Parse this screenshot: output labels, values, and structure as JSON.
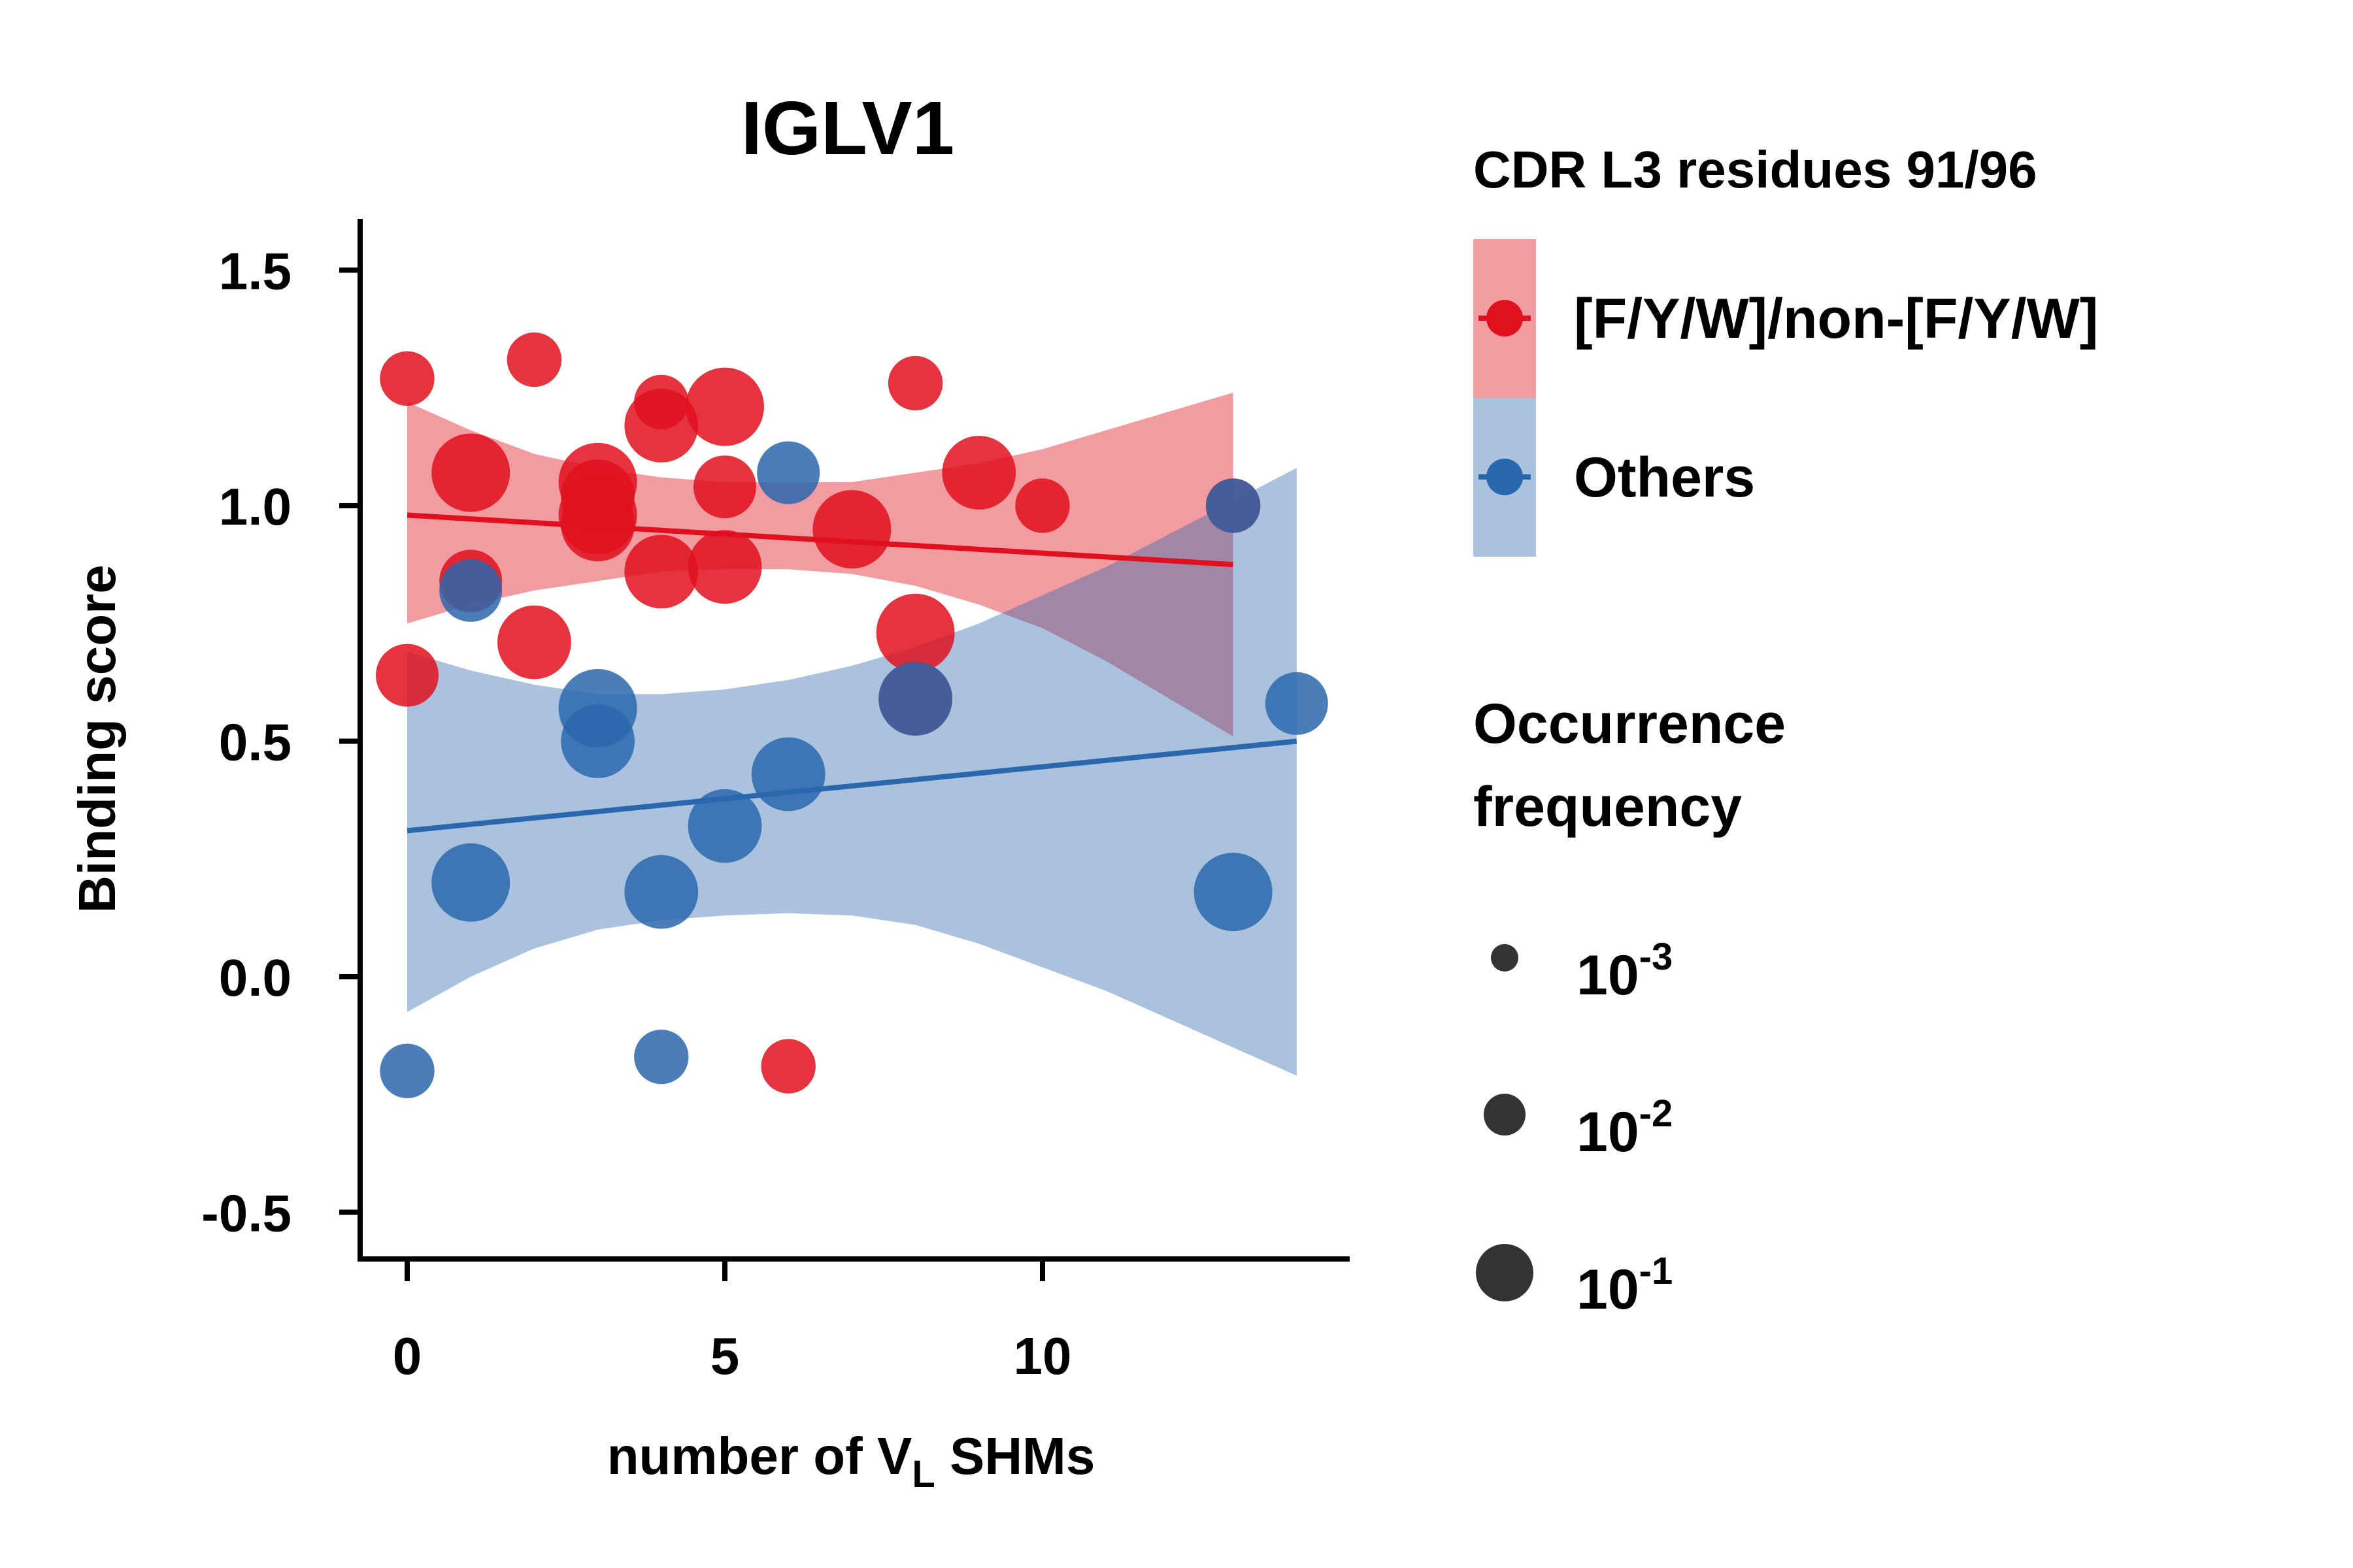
{
  "chart_data": {
    "type": "scatter",
    "title": "IGLV1",
    "xlabel": "number of V",
    "xlabel_sub": "L",
    "xlabel_tail": " SHMs",
    "ylabel": "Binding score",
    "xlim": [
      -0.7,
      14.8
    ],
    "ylim": [
      -0.6,
      1.6
    ],
    "xticks": [
      0,
      5,
      10
    ],
    "yticks": [
      1.5,
      1.0,
      0.5,
      0.0,
      -0.5
    ],
    "ytick_labels": [
      "1.5",
      "1.0",
      "0.5",
      "0.0",
      "-0.5"
    ],
    "xtick_labels": [
      "0",
      "5",
      "10"
    ],
    "grid": false,
    "series": [
      {
        "name": "[F/Y/W]/non-[F/Y/W]",
        "color": "#e0101f",
        "fit": {
          "x": [
            0,
            13
          ],
          "y": [
            0.98,
            0.875
          ]
        },
        "band": {
          "x": [
            0,
            1,
            2,
            3,
            4,
            5,
            6,
            7,
            8,
            9,
            10,
            11,
            12,
            13
          ],
          "upper": [
            1.22,
            1.16,
            1.11,
            1.08,
            1.06,
            1.05,
            1.05,
            1.05,
            1.07,
            1.09,
            1.12,
            1.16,
            1.2,
            1.24
          ],
          "lower": [
            0.75,
            0.79,
            0.82,
            0.84,
            0.86,
            0.865,
            0.865,
            0.855,
            0.83,
            0.79,
            0.74,
            0.67,
            0.59,
            0.51
          ]
        },
        "points": [
          {
            "x": 0,
            "y": 1.27,
            "freq": 0.003
          },
          {
            "x": 0,
            "y": 0.64,
            "freq": 0.01
          },
          {
            "x": 1,
            "y": 1.07,
            "freq": 0.1
          },
          {
            "x": 1,
            "y": 0.84,
            "freq": 0.01
          },
          {
            "x": 2,
            "y": 1.31,
            "freq": 0.003
          },
          {
            "x": 2,
            "y": 0.71,
            "freq": 0.05
          },
          {
            "x": 3,
            "y": 1.05,
            "freq": 0.1
          },
          {
            "x": 3,
            "y": 1.02,
            "freq": 0.05
          },
          {
            "x": 3,
            "y": 0.98,
            "freq": 0.1
          },
          {
            "x": 3,
            "y": 0.96,
            "freq": 0.05
          },
          {
            "x": 4,
            "y": 1.22,
            "freq": 0.003
          },
          {
            "x": 4,
            "y": 1.17,
            "freq": 0.05
          },
          {
            "x": 4,
            "y": 0.86,
            "freq": 0.05
          },
          {
            "x": 5,
            "y": 1.21,
            "freq": 0.1
          },
          {
            "x": 5,
            "y": 1.04,
            "freq": 0.01
          },
          {
            "x": 5,
            "y": 0.87,
            "freq": 0.05
          },
          {
            "x": 6,
            "y": -0.19,
            "freq": 0.003
          },
          {
            "x": 7,
            "y": 0.95,
            "freq": 0.1
          },
          {
            "x": 8,
            "y": 1.26,
            "freq": 0.003
          },
          {
            "x": 8,
            "y": 0.73,
            "freq": 0.1
          },
          {
            "x": 8,
            "y": 0.59,
            "freq": 0.05
          },
          {
            "x": 9,
            "y": 1.07,
            "freq": 0.05
          },
          {
            "x": 10,
            "y": 1.0,
            "freq": 0.003
          },
          {
            "x": 13,
            "y": 1.0,
            "freq": 0.003
          }
        ]
      },
      {
        "name": "Others",
        "color": "#2b67ad",
        "fit": {
          "x": [
            0,
            14
          ],
          "y": [
            0.31,
            0.5
          ]
        },
        "band": {
          "x": [
            0,
            1,
            2,
            3,
            4,
            5,
            6,
            7,
            8,
            9,
            10,
            11,
            12,
            13,
            14
          ],
          "upper": [
            0.69,
            0.65,
            0.62,
            0.6,
            0.6,
            0.61,
            0.63,
            0.66,
            0.7,
            0.75,
            0.81,
            0.87,
            0.94,
            1.01,
            1.08
          ],
          "lower": [
            -0.075,
            0.0,
            0.06,
            0.1,
            0.12,
            0.13,
            0.135,
            0.13,
            0.11,
            0.07,
            0.02,
            -0.03,
            -0.09,
            -0.15,
            -0.21
          ]
        },
        "points": [
          {
            "x": 0,
            "y": -0.2,
            "freq": 0.003
          },
          {
            "x": 1,
            "y": 0.82,
            "freq": 0.01
          },
          {
            "x": 1,
            "y": 0.2,
            "freq": 0.1
          },
          {
            "x": 3,
            "y": 0.57,
            "freq": 0.1
          },
          {
            "x": 3,
            "y": 0.5,
            "freq": 0.05
          },
          {
            "x": 4,
            "y": 0.18,
            "freq": 0.05
          },
          {
            "x": 4,
            "y": -0.17,
            "freq": 0.003
          },
          {
            "x": 5,
            "y": 0.32,
            "freq": 0.05
          },
          {
            "x": 6,
            "y": 1.07,
            "freq": 0.01
          },
          {
            "x": 6,
            "y": 0.43,
            "freq": 0.05
          },
          {
            "x": 8,
            "y": 0.59,
            "freq": 0.05
          },
          {
            "x": 13,
            "y": 1.0,
            "freq": 0.003
          },
          {
            "x": 13,
            "y": 0.18,
            "freq": 0.1
          },
          {
            "x": 14,
            "y": 0.58,
            "freq": 0.01
          }
        ]
      }
    ],
    "legend_placement": "right",
    "legend_color_title": "CDR L3 residues 91/96",
    "legend_size_title_line1": "Occurrence",
    "legend_size_title_line2": "frequency",
    "size_legend": [
      {
        "base": "10",
        "exp": "-3",
        "freq": 0.001
      },
      {
        "base": "10",
        "exp": "-2",
        "freq": 0.01
      },
      {
        "base": "10",
        "exp": "-1",
        "freq": 0.1
      }
    ]
  }
}
